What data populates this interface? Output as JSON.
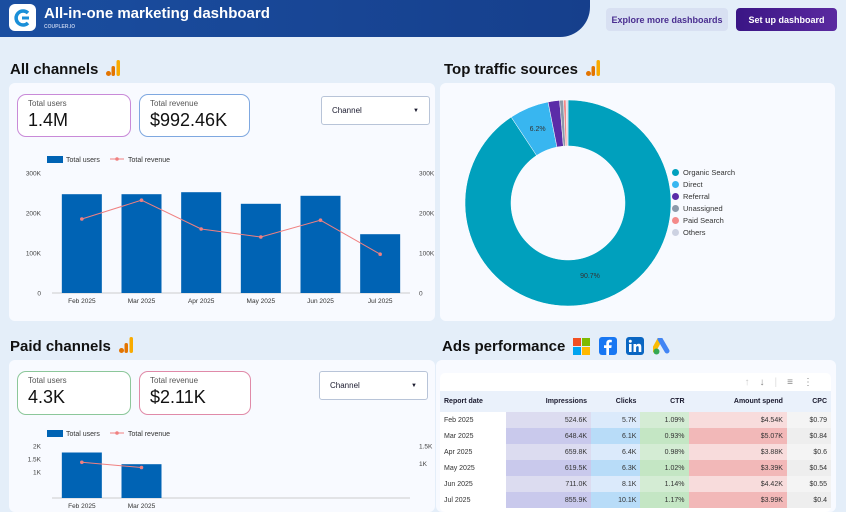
{
  "header": {
    "title": "All-in-one marketing dashboard",
    "subtitle": "COUPLER.IO",
    "explore_label": "Explore more dashboards",
    "setup_label": "Set up dashboard"
  },
  "all_channels": {
    "title": "All channels",
    "kpis": [
      {
        "label": "Total users",
        "value": "1.4M",
        "color": "#c98ad8"
      },
      {
        "label": "Total revenue",
        "value": "$992.46K",
        "color": "#7fa8e0"
      }
    ],
    "dropdown": "Channel"
  },
  "paid_channels": {
    "title": "Paid channels",
    "kpis": [
      {
        "label": "Total users",
        "value": "4.3K",
        "color": "#8cc79a"
      },
      {
        "label": "Total revenue",
        "value": "$2.11K",
        "color": "#e08aa8"
      }
    ],
    "dropdown": "Channel"
  },
  "traffic": {
    "title": "Top traffic sources"
  },
  "ads": {
    "title": "Ads performance",
    "table": {
      "headers": [
        "Report date",
        "Impressions",
        "Clicks",
        "CTR",
        "Amount spend",
        "CPC"
      ],
      "rows": [
        [
          "Feb 2025",
          "524.6K",
          "5.7K",
          "1.09%",
          "$4.54K",
          "$0.79"
        ],
        [
          "Mar 2025",
          "648.4K",
          "6.1K",
          "0.93%",
          "$5.07K",
          "$0.84"
        ],
        [
          "Apr 2025",
          "659.8K",
          "6.4K",
          "0.98%",
          "$3.88K",
          "$0.6"
        ],
        [
          "May 2025",
          "619.5K",
          "6.3K",
          "1.02%",
          "$3.39K",
          "$0.54"
        ],
        [
          "Jun 2025",
          "711.0K",
          "8.1K",
          "1.14%",
          "$4.42K",
          "$0.55"
        ],
        [
          "Jul 2025",
          "855.9K",
          "10.1K",
          "1.17%",
          "$3.99K",
          "$0.4"
        ]
      ]
    }
  },
  "chart_data": [
    {
      "type": "bar",
      "categories": [
        "Feb 2025",
        "Mar 2025",
        "Apr 2025",
        "May 2025",
        "Jun 2025",
        "Jul 2025"
      ],
      "series": [
        {
          "name": "Total users",
          "type": "bar",
          "axis": "left",
          "color": "#0063b4",
          "values": [
            247000,
            247000,
            252000,
            223000,
            243000,
            147000
          ]
        },
        {
          "name": "Total revenue",
          "type": "line",
          "axis": "right",
          "color": "#f08080",
          "values": [
            185000,
            232000,
            160000,
            140000,
            182000,
            97000
          ]
        }
      ],
      "yticks": [
        "0",
        "100K",
        "200K",
        "300K"
      ],
      "ylim": [
        0,
        300000
      ],
      "y2ticks": [
        "0",
        "100K",
        "200K",
        "300K"
      ],
      "y2lim": [
        0,
        300000
      ],
      "legend": "top-left"
    },
    {
      "type": "pie",
      "donut": true,
      "labels": [
        "Organic Search",
        "Direct",
        "Referral",
        "Unassigned",
        "Paid Search",
        "Others"
      ],
      "values": [
        90.7,
        6.2,
        1.8,
        0.6,
        0.4,
        0.3
      ],
      "colors": [
        "#00a0bd",
        "#38b6f0",
        "#5b2ca8",
        "#8c9aaa",
        "#f48a8a",
        "#cdd2e2"
      ],
      "data_labels": [
        "90.7%",
        "6.2%",
        "",
        "",
        "",
        ""
      ],
      "legend": "right"
    },
    {
      "type": "bar",
      "categories": [
        "Feb 2025",
        "Mar 2025"
      ],
      "series": [
        {
          "name": "Total users",
          "type": "bar",
          "axis": "left",
          "color": "#0063b4",
          "values": [
            1750,
            1300
          ]
        },
        {
          "name": "Total revenue",
          "type": "line",
          "axis": "right",
          "color": "#f08080",
          "values": [
            1030,
            880
          ]
        }
      ],
      "yticks": [
        "1K",
        "1.5K",
        "2K"
      ],
      "ylim": [
        0,
        2000
      ],
      "y2ticks": [
        "1K",
        "1.5K"
      ],
      "y2lim": [
        0,
        1500
      ],
      "legend": "top-left"
    }
  ]
}
